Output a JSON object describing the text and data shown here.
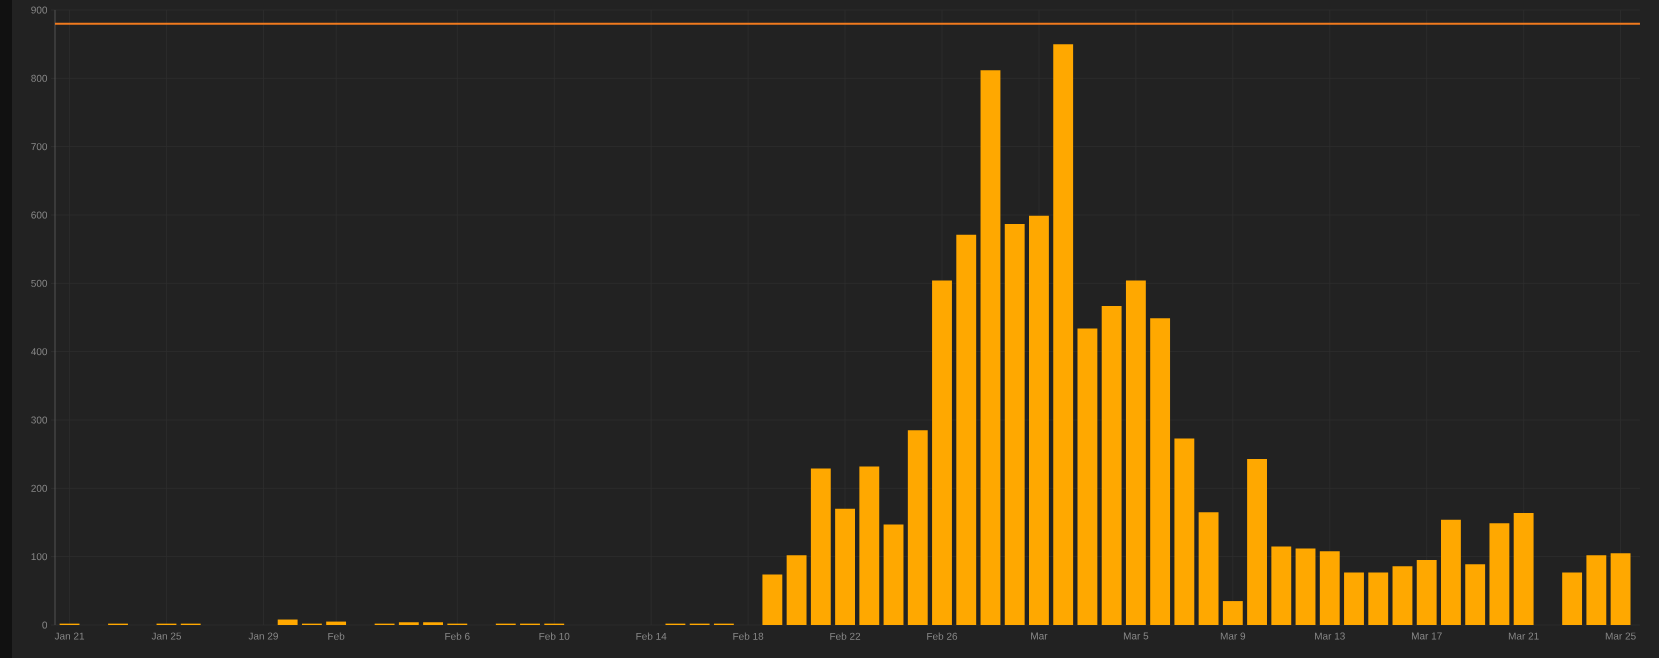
{
  "chart_data": {
    "type": "bar",
    "categories": [
      "Jan 21",
      null,
      null,
      null,
      "Jan 25",
      null,
      null,
      null,
      "Jan 29",
      null,
      null,
      "Feb",
      null,
      null,
      null,
      null,
      "Feb 6",
      null,
      null,
      null,
      "Feb 10",
      null,
      null,
      null,
      "Feb 14",
      null,
      null,
      null,
      "Feb 18",
      null,
      null,
      null,
      "Feb 22",
      null,
      null,
      null,
      "Feb 26",
      null,
      null,
      null,
      "Mar",
      null,
      null,
      null,
      "Mar 5",
      null,
      null,
      null,
      "Mar 9",
      null,
      null,
      null,
      "Mar 13",
      null,
      null,
      null,
      "Mar 17",
      null,
      null,
      null,
      "Mar 21",
      null,
      null,
      null,
      "Mar 25"
    ],
    "values": [
      2,
      0,
      2,
      0,
      2,
      2,
      0,
      0,
      0,
      8,
      2,
      5,
      0,
      2,
      4,
      4,
      2,
      0,
      2,
      2,
      2,
      0,
      0,
      0,
      0,
      2,
      2,
      2,
      0,
      74,
      102,
      229,
      170,
      232,
      147,
      285,
      504,
      571,
      812,
      587,
      599,
      850,
      434,
      467,
      504,
      449,
      273,
      165,
      35,
      243,
      115,
      112,
      108,
      77,
      77,
      86,
      95,
      154,
      89,
      149,
      164,
      0,
      77,
      102,
      105
    ],
    "color": "#ffa800",
    "ylim": [
      0,
      900
    ],
    "yticks": [
      0,
      100,
      200,
      300,
      400,
      500,
      600,
      700,
      800,
      900
    ],
    "grid": true,
    "ref_lines": [
      {
        "axis": "y",
        "value": 880,
        "color": "#f07a1e"
      }
    ]
  }
}
